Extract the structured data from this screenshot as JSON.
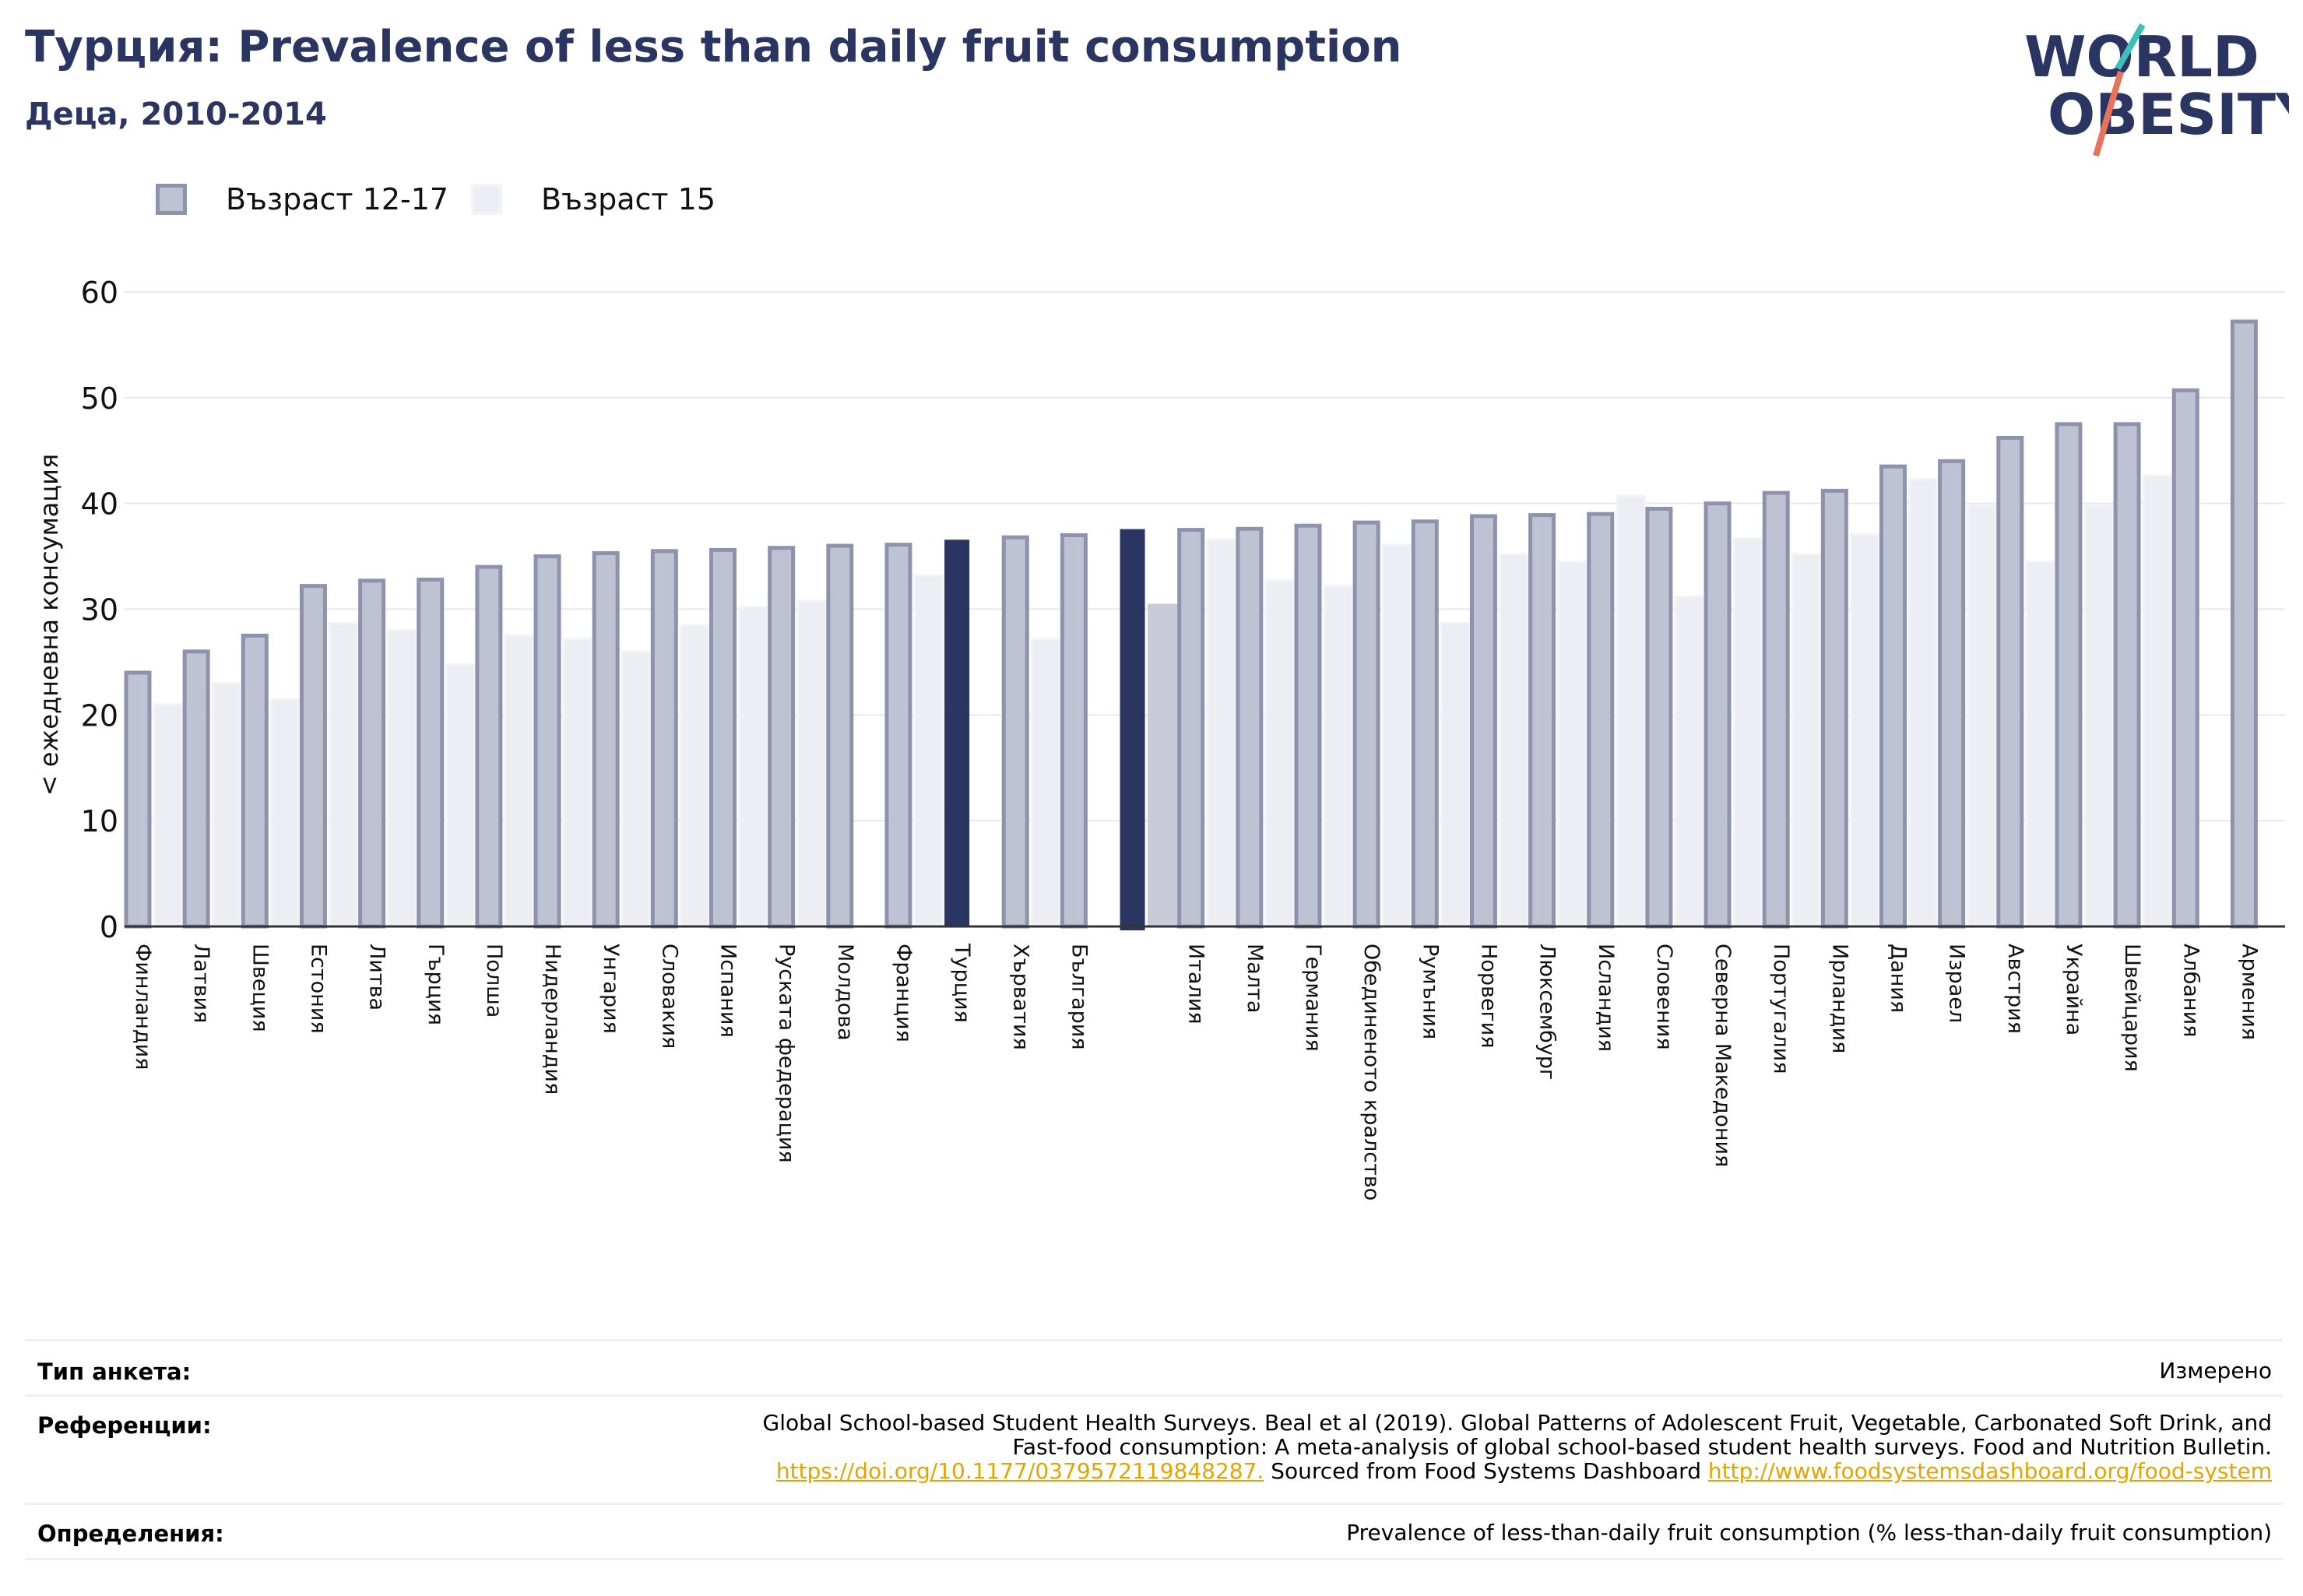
{
  "header": {
    "title": "Турция: Prevalence of less than daily fruit consumption",
    "subtitle": "Деца, 2010-2014",
    "logo_text_line1": "WORLD",
    "logo_text_line2": "OBESITY"
  },
  "legend": {
    "items": [
      {
        "label": "Възраст 12-17"
      },
      {
        "label": "Възраст 15"
      }
    ]
  },
  "colors": {
    "series1": "#bfc2d2",
    "series1_border": "#8e93ad",
    "series2": "#eceef3",
    "highlight1": "#2b3561",
    "highlight2": "#c9cbd8",
    "axis_text": "#111111",
    "title": "#2b3561",
    "logo_accent1": "#3bbfbf",
    "logo_accent2": "#e8735a"
  },
  "chart_data": {
    "type": "bar",
    "ylabel": "< ежедневна консумация",
    "ylim": [
      0,
      60
    ],
    "yticks": [
      0,
      10,
      20,
      30,
      40,
      50,
      60
    ],
    "grid": true,
    "legend_position": "top-left",
    "highlight": "Турция",
    "categories": [
      "Финландия",
      "Латвия",
      "Швеция",
      "Естония",
      "Литва",
      "Гърция",
      "Полша",
      "Нидерландия",
      "Унгария",
      "Словакия",
      "Испания",
      "Руската федерация",
      "Молдова",
      "Франция",
      "Турция",
      "Хърватия",
      "България",
      "",
      "Италия",
      "Малта",
      "Германия",
      "Обединеното кралство",
      "Румъния",
      "Норвегия",
      "Люксембург",
      "Исландия",
      "Словения",
      "Северна Македония",
      "Португалия",
      "Ирландия",
      "Дания",
      "Израел",
      "Австрия",
      "Украйна",
      "Швейцария",
      "Албания",
      "Армения"
    ],
    "series": [
      {
        "name": "Възраст 12-17",
        "values": [
          24.0,
          26.0,
          27.5,
          32.2,
          32.7,
          32.8,
          34.0,
          35.0,
          35.3,
          35.5,
          35.6,
          35.8,
          36.0,
          36.1,
          36.5,
          36.8,
          37.0,
          37.5,
          37.5,
          37.6,
          37.9,
          38.2,
          38.3,
          38.8,
          38.9,
          39.0,
          39.5,
          40.0,
          41.0,
          41.2,
          43.5,
          44.0,
          46.2,
          47.5,
          47.5,
          50.7,
          57.2
        ]
      },
      {
        "name": "Възраст 15",
        "values": [
          21.0,
          23.0,
          21.5,
          28.7,
          28.0,
          24.8,
          27.5,
          27.2,
          26.0,
          28.5,
          30.2,
          30.8,
          null,
          33.2,
          null,
          27.2,
          null,
          30.4,
          36.6,
          32.7,
          32.2,
          36.1,
          28.7,
          35.2,
          34.5,
          40.7,
          31.2,
          36.7,
          35.2,
          37.1,
          42.3,
          39.8,
          34.5,
          39.8,
          42.6,
          null,
          null
        ]
      }
    ]
  },
  "meta": {
    "survey_type_label": "Тип анкета:",
    "survey_type_value": "Измерено",
    "references_label": "Референции:",
    "references_line1": "Global School-based Student Health Surveys. Beal et al (2019). Global Patterns of Adolescent Fruit, Vegetable, Carbonated Soft Drink, and",
    "references_line2": "Fast-food consumption: A meta-analysis of global school-based student health surveys. Food and Nutrition Bulletin.",
    "references_link1": "https://doi.org/10.1177/0379572119848287.",
    "references_mid": " Sourced from Food Systems Dashboard ",
    "references_link2": "http://www.foodsystemsdashboard.org/food-system",
    "definitions_label": "Определения:",
    "definitions_value": "Prevalence of less-than-daily fruit consumption (% less-than-daily fruit consumption)"
  }
}
